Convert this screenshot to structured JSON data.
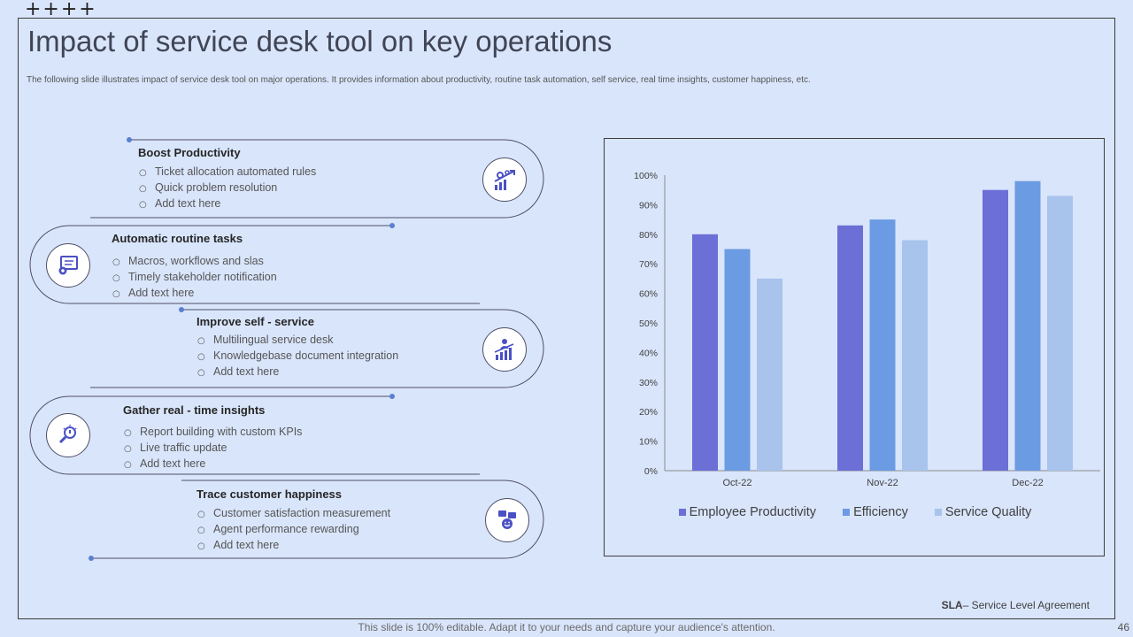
{
  "decor": {
    "plus_marks": "++++"
  },
  "header": {
    "title": "Impact of service desk tool on key operations",
    "subtitle": "The following slide illustrates impact of service desk tool on major operations. It provides information about productivity, routine task automation, self service, real time insights, customer happiness, etc."
  },
  "timeline": {
    "items": [
      {
        "title": "Boost Productivity",
        "icon": "productivity-gears-icon",
        "bullets": [
          "Ticket allocation automated rules",
          "Quick problem resolution",
          "Add text here"
        ]
      },
      {
        "title": "Automatic routine tasks",
        "icon": "automation-monitor-icon",
        "bullets": [
          "Macros, workflows and slas",
          "Timely stakeholder notification",
          "Add text here"
        ]
      },
      {
        "title": "Improve self - service",
        "icon": "self-service-chart-icon",
        "bullets": [
          "Multilingual service desk",
          "Knowledgebase  document integration",
          "Add text here"
        ]
      },
      {
        "title": "Gather real - time insights",
        "icon": "insights-bulb-icon",
        "bullets": [
          "Report building with custom KPIs",
          "Live traffic update",
          "Add text here"
        ]
      },
      {
        "title": "Trace customer happiness",
        "icon": "customer-happiness-icon",
        "bullets": [
          "Customer satisfaction measurement",
          "Agent performance  rewarding",
          "Add text here"
        ]
      }
    ]
  },
  "chart_data": {
    "type": "bar",
    "categories": [
      "Oct-22",
      "Nov-22",
      "Dec-22"
    ],
    "series": [
      {
        "name": "Employee Productivity",
        "color": "#6b6fd6",
        "values": [
          80,
          83,
          95
        ]
      },
      {
        "name": "Efficiency",
        "color": "#6b9be2",
        "values": [
          75,
          85,
          98
        ]
      },
      {
        "name": "Service Quality",
        "color": "#a8c3ec",
        "values": [
          65,
          78,
          93
        ]
      }
    ],
    "y_ticks": [
      "0%",
      "10%",
      "20%",
      "30%",
      "40%",
      "50%",
      "60%",
      "70%",
      "80%",
      "90%",
      "100%"
    ],
    "ylim": [
      0,
      100
    ],
    "grid": false,
    "legend_position": "bottom"
  },
  "footnote": {
    "abbr": "SLA",
    "text": "– Service Level Agreement"
  },
  "footer": {
    "editable_note": "This slide is 100% editable. Adapt it to your needs and capture your audience's attention.",
    "page_number": "46"
  }
}
